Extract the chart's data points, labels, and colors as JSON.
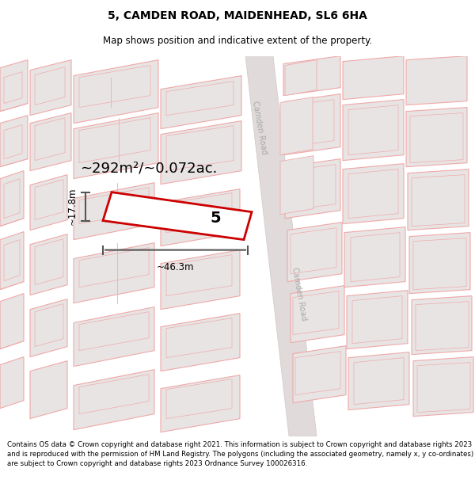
{
  "title": "5, CAMDEN ROAD, MAIDENHEAD, SL6 6HA",
  "subtitle": "Map shows position and indicative extent of the property.",
  "footer": "Contains OS data © Crown copyright and database right 2021. This information is subject to Crown copyright and database rights 2023 and is reproduced with the permission of HM Land Registry. The polygons (including the associated geometry, namely x, y co-ordinates) are subject to Crown copyright and database rights 2023 Ordnance Survey 100026316.",
  "area_label": "~292m²/~0.072ac.",
  "width_label": "~46.3m",
  "height_label": "~17.8m",
  "property_number": "5",
  "road_label": "Camden Road",
  "map_bg": "#faf8f8",
  "building_fill": "#e8e4e4",
  "building_edge": "#f0a8a8",
  "road_fill": "#e0dada",
  "road_edge": "#d0c8c8",
  "highlight_edge": "#cc0000",
  "highlight_fill": "#ffffff",
  "dim_line_color": "#555555",
  "title_fontsize": 10,
  "subtitle_fontsize": 8.5,
  "footer_fontsize": 6.2,
  "area_fontsize": 13,
  "num_fontsize": 14,
  "dim_fontsize": 8.5,
  "road_label_fontsize": 7
}
